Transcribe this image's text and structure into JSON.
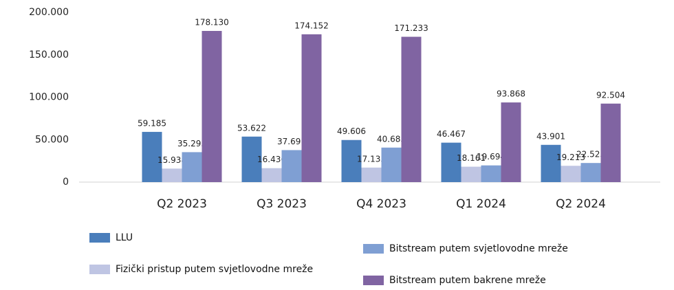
{
  "chart_data": {
    "type": "bar",
    "categories": [
      "Q2 2023",
      "Q3 2023",
      "Q4 2023",
      "Q1 2024",
      "Q2 2024"
    ],
    "series": [
      {
        "name": "LLU",
        "color": "#4a7ebb",
        "values": [
          59185,
          53622,
          49606,
          46467,
          43901
        ],
        "value_labels": [
          "59.185",
          "53.622",
          "49.606",
          "46.467",
          "43.901"
        ]
      },
      {
        "name": "Fizički pristup putem svjetlovodne mreže",
        "color": "#bfc5e3",
        "values": [
          15938,
          16436,
          17135,
          18161,
          19213
        ],
        "value_labels": [
          "15.938",
          "16.436",
          "17.135",
          "18.161",
          "19.213"
        ]
      },
      {
        "name": "Bitstream putem svjetlovodne mreže",
        "color": "#7f9fd3",
        "values": [
          35293,
          37691,
          40683,
          19694,
          22525
        ],
        "value_labels": [
          "35.293",
          "37.691",
          "40.683",
          "19.694",
          "22.525"
        ]
      },
      {
        "name": "Bitstream putem bakrene mreže",
        "color": "#8064a2",
        "values": [
          178130,
          174152,
          171233,
          93868,
          92504
        ],
        "value_labels": [
          "178.130",
          "174.152",
          "171.233",
          "93.868",
          "92.504"
        ]
      }
    ],
    "ylim": [
      0,
      200000
    ],
    "yticks": [
      0,
      {
        "value": 50000,
        "label": "50.000"
      },
      {
        "value": 100000,
        "label": "100.000"
      },
      {
        "value": 150000,
        "label": "150.000"
      },
      {
        "value": 200000,
        "label": "200.000"
      }
    ],
    "grid": false
  }
}
